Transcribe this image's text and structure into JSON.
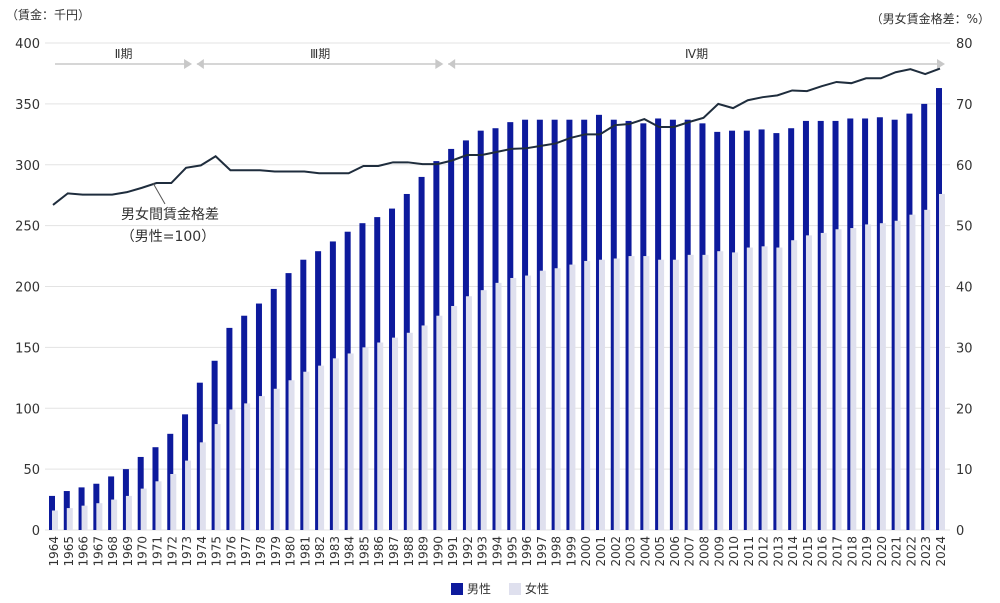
{
  "chart_data": {
    "type": "bar",
    "left_axis_label": "（賃金：千円）",
    "right_axis_label": "（男女賃金格差：%）",
    "ylim": [
      0,
      400
    ],
    "y_ticks": [
      0,
      50,
      100,
      150,
      200,
      250,
      300,
      350,
      400
    ],
    "y2lim": [
      0,
      80
    ],
    "y2_ticks": [
      0,
      10,
      20,
      30,
      40,
      50,
      60,
      70,
      80
    ],
    "grid": true,
    "legend_position": "bottom",
    "categories": [
      "1964",
      "1965",
      "1966",
      "1967",
      "1968",
      "1969",
      "1970",
      "1971",
      "1972",
      "1973",
      "1974",
      "1975",
      "1976",
      "1977",
      "1978",
      "1979",
      "1980",
      "1981",
      "1982",
      "1983",
      "1984",
      "1985",
      "1986",
      "1987",
      "1988",
      "1989",
      "1990",
      "1991",
      "1992",
      "1993",
      "1994",
      "1995",
      "1996",
      "1997",
      "1998",
      "1999",
      "2000",
      "2001",
      "2002",
      "2003",
      "2004",
      "2005",
      "2006",
      "2007",
      "2008",
      "2009",
      "2010",
      "2011",
      "2012",
      "2013",
      "2014",
      "2015",
      "2016",
      "2017",
      "2018",
      "2019",
      "2020",
      "2021",
      "2022",
      "2023",
      "2024"
    ],
    "series": [
      {
        "name": "男性",
        "type": "bar",
        "axis": "left",
        "color": "#0d1a9c",
        "values": [
          28,
          32,
          35,
          38,
          44,
          50,
          60,
          68,
          79,
          95,
          121,
          139,
          166,
          176,
          186,
          198,
          211,
          222,
          229,
          237,
          245,
          252,
          257,
          264,
          276,
          290,
          303,
          313,
          320,
          328,
          330,
          335,
          337,
          337,
          337,
          337,
          337,
          341,
          337,
          336,
          334,
          338,
          337,
          337,
          334,
          327,
          328,
          328,
          329,
          326,
          330,
          336,
          336,
          336,
          338,
          338,
          339,
          337,
          342,
          350,
          363
        ]
      },
      {
        "name": "女性",
        "type": "bar",
        "axis": "left",
        "color": "#dfe0ee",
        "values": [
          16,
          18,
          20,
          22,
          25,
          28,
          34,
          40,
          46,
          57,
          72,
          87,
          99,
          104,
          110,
          116,
          123,
          130,
          135,
          141,
          145,
          150,
          154,
          158,
          162,
          168,
          176,
          184,
          192,
          197,
          203,
          207,
          209,
          213,
          215,
          218,
          221,
          222,
          223,
          225,
          225,
          222,
          222,
          226,
          226,
          229,
          228,
          232,
          233,
          232,
          238,
          242,
          244,
          247,
          248,
          251,
          252,
          254,
          259,
          263,
          276
        ]
      },
      {
        "type": "line",
        "axis": "right",
        "color": "#1f2d3d",
        "values": [
          53.4,
          55.3,
          55.1,
          55.1,
          55.1,
          55.5,
          56.2,
          57.0,
          57.0,
          59.5,
          59.9,
          61.4,
          59.1,
          59.1,
          59.1,
          58.9,
          58.9,
          58.9,
          58.6,
          58.6,
          58.6,
          59.8,
          59.8,
          60.4,
          60.4,
          60.1,
          60.1,
          60.7,
          61.6,
          61.6,
          62.1,
          62.6,
          62.7,
          63.1,
          63.5,
          64.4,
          65.0,
          65.0,
          66.5,
          66.7,
          67.5,
          66.2,
          66.2,
          67.0,
          67.7,
          70.0,
          69.3,
          70.6,
          71.1,
          71.4,
          72.2,
          72.1,
          72.9,
          73.6,
          73.4,
          74.2,
          74.2,
          75.2,
          75.7,
          74.9,
          75.8
        ]
      }
    ],
    "annotations": {
      "line_label_1": "男女間賃金格差",
      "line_label_2": "（男性=100）",
      "periods": [
        {
          "label": "Ⅱ期",
          "from": "1964",
          "to": "1973"
        },
        {
          "label": "Ⅲ期",
          "from": "1974",
          "to": "1990"
        },
        {
          "label": "Ⅳ期",
          "from": "1991",
          "to": "2024"
        }
      ]
    }
  }
}
